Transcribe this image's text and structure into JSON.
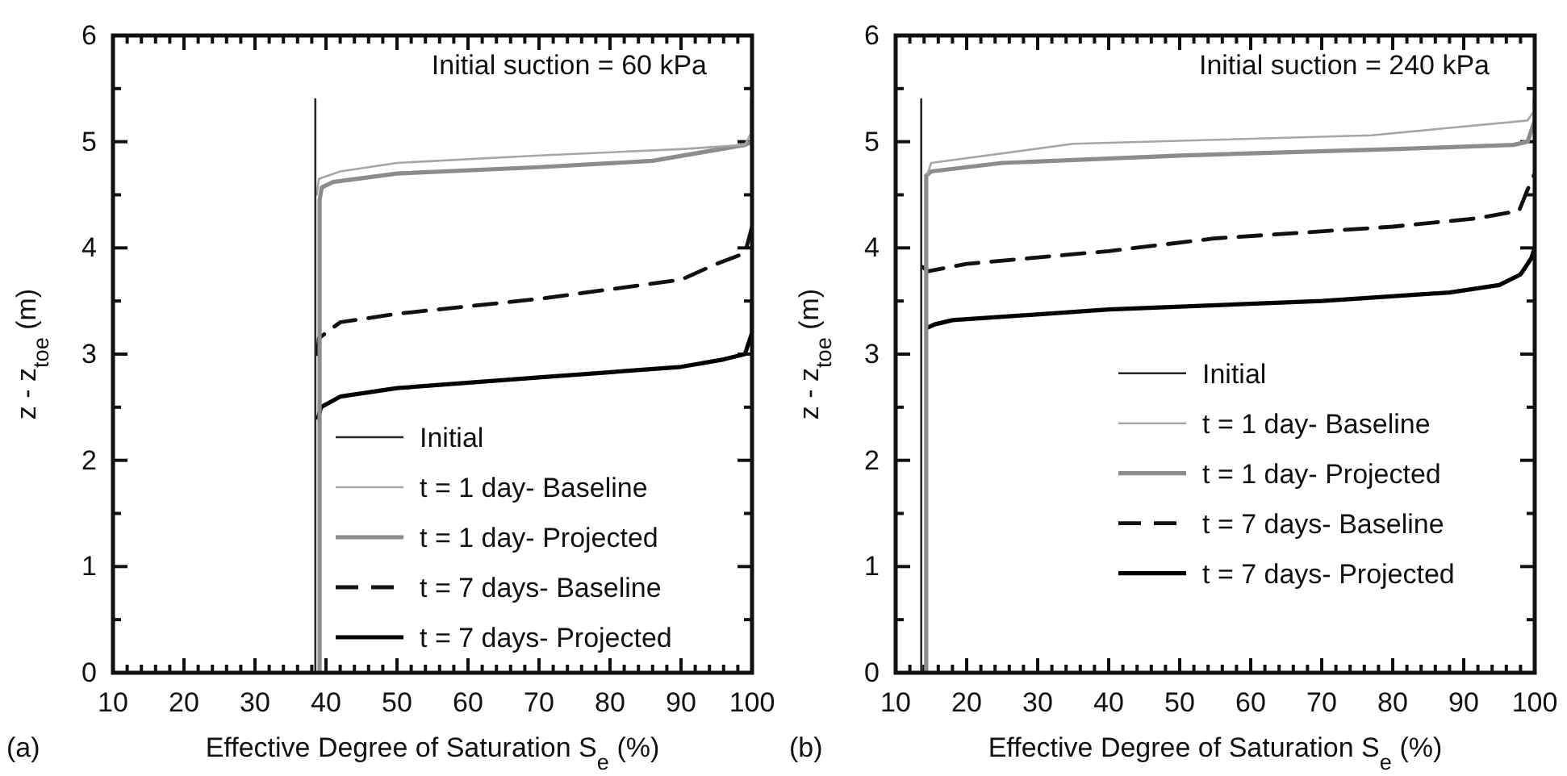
{
  "chart_data": [
    {
      "type": "line",
      "xlabel": "Effective Degree of Saturation S$_{e}$ (%)",
      "ylabel": "z - z$_{toe}$ (m)",
      "annotations": [
        "Initial suction = 60 kPa",
        "(a)"
      ],
      "xlim": [
        10,
        100
      ],
      "ylim": [
        0,
        6
      ],
      "xticks": [
        10,
        {
          "value": 12,
          "label": null
        },
        {
          "value": 14,
          "label": null
        },
        {
          "value": 16,
          "label": null
        },
        {
          "value": 18,
          "label": null
        },
        20,
        {
          "value": 22,
          "label": null
        },
        {
          "value": 24,
          "label": null
        },
        {
          "value": 26,
          "label": null
        },
        {
          "value": 28,
          "label": null
        },
        30,
        {
          "value": 32,
          "label": null
        },
        {
          "value": 34,
          "label": null
        },
        {
          "value": 36,
          "label": null
        },
        {
          "value": 38,
          "label": null
        },
        40,
        {
          "value": 42,
          "label": null
        },
        {
          "value": 44,
          "label": null
        },
        {
          "value": 46,
          "label": null
        },
        {
          "value": 48,
          "label": null
        },
        50,
        {
          "value": 52,
          "label": null
        },
        {
          "value": 54,
          "label": null
        },
        {
          "value": 56,
          "label": null
        },
        {
          "value": 58,
          "label": null
        },
        60,
        {
          "value": 62,
          "label": null
        },
        {
          "value": 64,
          "label": null
        },
        {
          "value": 66,
          "label": null
        },
        {
          "value": 68,
          "label": null
        },
        70,
        {
          "value": 72,
          "label": null
        },
        {
          "value": 74,
          "label": null
        },
        {
          "value": 76,
          "label": null
        },
        {
          "value": 78,
          "label": null
        },
        80,
        {
          "value": 82,
          "label": null
        },
        {
          "value": 84,
          "label": null
        },
        {
          "value": 86,
          "label": null
        },
        {
          "value": 88,
          "label": null
        },
        90,
        {
          "value": 92,
          "label": null
        },
        {
          "value": 94,
          "label": null
        },
        {
          "value": 96,
          "label": null
        },
        {
          "value": 98,
          "label": null
        },
        100
      ],
      "yticks": [
        0,
        {
          "value": 0.5,
          "label": null
        },
        1,
        {
          "value": 1.5,
          "label": null
        },
        2,
        {
          "value": 2.5,
          "label": null
        },
        3,
        {
          "value": 3.5,
          "label": null
        },
        4,
        {
          "value": 4.5,
          "label": null
        },
        5,
        {
          "value": 5.5,
          "label": null
        },
        6
      ],
      "grid": false,
      "legend": "bottom right",
      "marker": "none",
      "series": [
        {
          "name": "Initial",
          "color": "#262626",
          "x": [
            38.5,
            38.5
          ],
          "values": [
            0,
            5.4
          ]
        },
        {
          "name": "t = 1 day- Baseline",
          "color": "#a6a6a6",
          "x": [
            38.7,
            39,
            42,
            50,
            70,
            90,
            99,
            100,
            100
          ],
          "values": [
            4.5,
            4.65,
            4.72,
            4.8,
            4.87,
            4.93,
            4.97,
            5.1,
            5.4
          ]
        },
        {
          "name": "t = 1 day- Projected",
          "color": "#8c8c8c",
          "x": [
            39.1,
            39.1,
            39.4,
            41,
            50,
            70,
            86,
            99,
            100,
            100
          ],
          "values": [
            0,
            4.45,
            4.57,
            4.62,
            4.7,
            4.76,
            4.82,
            4.97,
            5.0,
            5.4
          ]
        },
        {
          "name": "t = 7 days- Baseline",
          "color": "#111111",
          "line_style": "dashed",
          "x": [
            38.8,
            39,
            42,
            50,
            70,
            90,
            95,
            99,
            100
          ],
          "values": [
            3.0,
            3.15,
            3.3,
            3.38,
            3.52,
            3.7,
            3.85,
            3.95,
            4.2
          ]
        },
        {
          "name": "t = 7 days- Projected",
          "color": "#000000",
          "x": [
            38.9,
            39.3,
            42,
            50,
            70,
            90,
            96,
            99,
            100,
            100
          ],
          "values": [
            2.4,
            2.5,
            2.6,
            2.68,
            2.78,
            2.88,
            2.95,
            3.0,
            3.2,
            3.5
          ]
        }
      ]
    },
    {
      "type": "line",
      "xlabel": "Effective Degree of Saturation S$_{e}$ (%)",
      "ylabel": "z - z$_{toe}$ (m)",
      "annotations": [
        "Initial suction = 240 kPa",
        "(b)"
      ],
      "xlim": [
        10,
        100
      ],
      "ylim": [
        0,
        6
      ],
      "xticks": [
        10,
        {
          "value": 12,
          "label": null
        },
        {
          "value": 14,
          "label": null
        },
        {
          "value": 16,
          "label": null
        },
        {
          "value": 18,
          "label": null
        },
        20,
        {
          "value": 22,
          "label": null
        },
        {
          "value": 24,
          "label": null
        },
        {
          "value": 26,
          "label": null
        },
        {
          "value": 28,
          "label": null
        },
        30,
        {
          "value": 32,
          "label": null
        },
        {
          "value": 34,
          "label": null
        },
        {
          "value": 36,
          "label": null
        },
        {
          "value": 38,
          "label": null
        },
        40,
        {
          "value": 42,
          "label": null
        },
        {
          "value": 44,
          "label": null
        },
        {
          "value": 46,
          "label": null
        },
        {
          "value": 48,
          "label": null
        },
        50,
        {
          "value": 52,
          "label": null
        },
        {
          "value": 54,
          "label": null
        },
        {
          "value": 56,
          "label": null
        },
        {
          "value": 58,
          "label": null
        },
        60,
        {
          "value": 62,
          "label": null
        },
        {
          "value": 64,
          "label": null
        },
        {
          "value": 66,
          "label": null
        },
        {
          "value": 68,
          "label": null
        },
        70,
        {
          "value": 72,
          "label": null
        },
        {
          "value": 74,
          "label": null
        },
        {
          "value": 76,
          "label": null
        },
        {
          "value": 78,
          "label": null
        },
        80,
        {
          "value": 82,
          "label": null
        },
        {
          "value": 84,
          "label": null
        },
        {
          "value": 86,
          "label": null
        },
        {
          "value": 88,
          "label": null
        },
        90,
        {
          "value": 92,
          "label": null
        },
        {
          "value": 94,
          "label": null
        },
        {
          "value": 96,
          "label": null
        },
        {
          "value": 98,
          "label": null
        },
        100
      ],
      "yticks": [
        0,
        {
          "value": 0.5,
          "label": null
        },
        1,
        {
          "value": 1.5,
          "label": null
        },
        2,
        {
          "value": 2.5,
          "label": null
        },
        3,
        {
          "value": 3.5,
          "label": null
        },
        4,
        {
          "value": 4.5,
          "label": null
        },
        5,
        {
          "value": 5.5,
          "label": null
        },
        6
      ],
      "grid": false,
      "legend": "right",
      "marker": "none",
      "series": [
        {
          "name": "Initial",
          "color": "#262626",
          "x": [
            13.6,
            13.6
          ],
          "values": [
            0,
            5.4
          ]
        },
        {
          "name": "t = 1 day- Baseline",
          "color": "#a6a6a6",
          "x": [
            14.5,
            15,
            35,
            77,
            99,
            100,
            100
          ],
          "values": [
            4.7,
            4.8,
            4.98,
            5.06,
            5.2,
            5.3,
            5.4
          ]
        },
        {
          "name": "t = 1 day- Projected",
          "color": "#8c8c8c",
          "x": [
            14.3,
            14.3,
            15,
            25,
            50,
            80,
            97,
            99,
            100,
            100
          ],
          "values": [
            0,
            4.68,
            4.72,
            4.8,
            4.87,
            4.93,
            4.97,
            5.0,
            5.2,
            5.4
          ]
        },
        {
          "name": "t = 7 days- Baseline",
          "color": "#111111",
          "line_style": "dashed",
          "x": [
            13.8,
            14.5,
            20,
            40,
            55,
            80,
            92,
            97.8,
            99,
            100
          ],
          "values": [
            3.82,
            3.78,
            3.85,
            3.97,
            4.09,
            4.2,
            4.28,
            4.35,
            4.55,
            4.7
          ]
        },
        {
          "name": "t = 7 days- Projected",
          "color": "#000000",
          "x": [
            14.5,
            15.5,
            18,
            40,
            70,
            88,
            95,
            98,
            99.5,
            100
          ],
          "values": [
            3.25,
            3.28,
            3.32,
            3.42,
            3.5,
            3.58,
            3.65,
            3.75,
            3.9,
            4.0
          ]
        }
      ]
    }
  ]
}
